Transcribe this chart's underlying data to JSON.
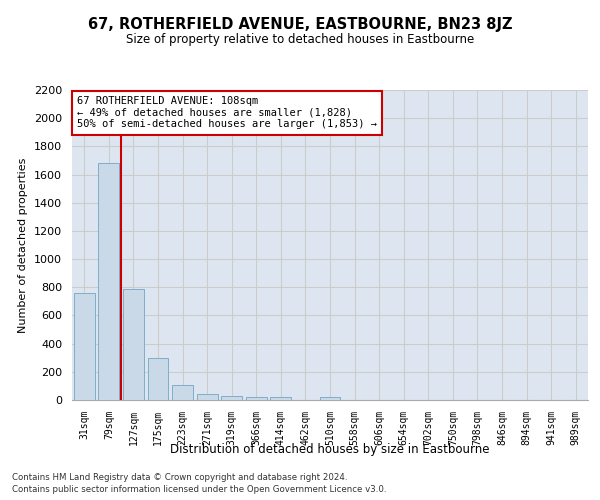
{
  "title": "67, ROTHERFIELD AVENUE, EASTBOURNE, BN23 8JZ",
  "subtitle": "Size of property relative to detached houses in Eastbourne",
  "xlabel": "Distribution of detached houses by size in Eastbourne",
  "ylabel": "Number of detached properties",
  "categories": [
    "31sqm",
    "79sqm",
    "127sqm",
    "175sqm",
    "223sqm",
    "271sqm",
    "319sqm",
    "366sqm",
    "414sqm",
    "462sqm",
    "510sqm",
    "558sqm",
    "606sqm",
    "654sqm",
    "702sqm",
    "750sqm",
    "798sqm",
    "846sqm",
    "894sqm",
    "941sqm",
    "989sqm"
  ],
  "values": [
    760,
    1680,
    790,
    300,
    110,
    40,
    30,
    20,
    20,
    0,
    20,
    0,
    0,
    0,
    0,
    0,
    0,
    0,
    0,
    0,
    0
  ],
  "bar_color": "#c9d9e8",
  "bar_edge_color": "#7faecb",
  "vline_color": "#cc0000",
  "vline_pos": 1.5,
  "annotation_line1": "67 ROTHERFIELD AVENUE: 108sqm",
  "annotation_line2": "← 49% of detached houses are smaller (1,828)",
  "annotation_line3": "50% of semi-detached houses are larger (1,853) →",
  "annotation_box_color": "#ffffff",
  "annotation_box_edge": "#cc0000",
  "ylim": [
    0,
    2200
  ],
  "yticks": [
    0,
    200,
    400,
    600,
    800,
    1000,
    1200,
    1400,
    1600,
    1800,
    2000,
    2200
  ],
  "grid_color": "#cccccc",
  "bg_color": "#dde6f0",
  "footer1": "Contains HM Land Registry data © Crown copyright and database right 2024.",
  "footer2": "Contains public sector information licensed under the Open Government Licence v3.0."
}
